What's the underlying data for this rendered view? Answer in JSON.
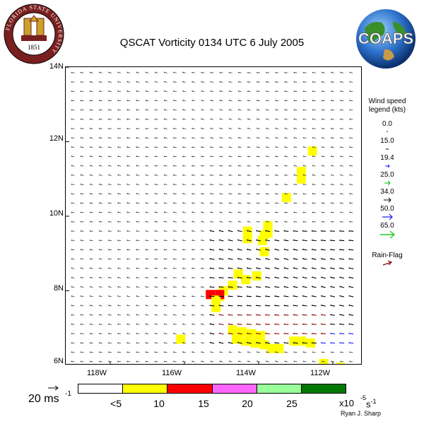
{
  "title": "QSCAT Vorticity 0134 UTC 6 July 2005",
  "logos": {
    "fsu_ring_text": "FLORIDA STATE UNIVERSITY",
    "fsu_year": "1851",
    "coaps_text": "COAPS"
  },
  "axes": {
    "y_ticks": [
      "14N",
      "12N",
      "10N",
      "8N",
      "6N"
    ],
    "x_ticks": [
      "118W",
      "116W",
      "114W",
      "112W"
    ],
    "lat_range": [
      6,
      14
    ],
    "lon_range": [
      -119.2,
      -111.2
    ]
  },
  "legend": {
    "title_line1": "Wind speed",
    "title_line2": "legend (kts)",
    "entries": [
      {
        "value": "0.0",
        "color": "#000000"
      },
      {
        "value": "15.0",
        "color": "#000000"
      },
      {
        "value": "19.4",
        "color": "#000000"
      },
      {
        "value": "25.0",
        "color": "#1a1aff"
      },
      {
        "value": "34.0",
        "color": "#22cc22"
      },
      {
        "value": "50.0",
        "color": "#000000"
      },
      {
        "value": "65.0",
        "color": "#1a1aff"
      },
      {
        "value": "",
        "color": "#22cc22"
      }
    ],
    "rain_flag_label": "Rain-Flag",
    "rain_flag_color": "#8b0000"
  },
  "colorbar": {
    "segments": [
      {
        "color": "#ffffff"
      },
      {
        "color": "#ffff00"
      },
      {
        "color": "#ff0000"
      },
      {
        "color": "#ff66ff"
      },
      {
        "color": "#99ff99"
      },
      {
        "color": "#007700"
      }
    ],
    "ticks": [
      "<5",
      "10",
      "15",
      "20",
      "25"
    ],
    "unit": "x10",
    "unit_exp": "-5",
    "unit_tail": " s",
    "unit_tail_exp": "-1"
  },
  "reference_vector": {
    "label": "20 ms",
    "exp": "-1"
  },
  "credit": "Ryan J. Sharp",
  "chart_data": {
    "type": "heatmap",
    "title": "QSCAT Vorticity 0134 UTC 6 July 2005",
    "xlabel": "",
    "ylabel": "",
    "x_range": [
      -119.2,
      -111.2
    ],
    "y_range": [
      6,
      14
    ],
    "vorticity_cells": [
      {
        "lon": -112.55,
        "lat": 11.75,
        "level": 1
      },
      {
        "lon": -112.85,
        "lat": 11.2,
        "level": 1
      },
      {
        "lon": -112.85,
        "lat": 11.0,
        "level": 1
      },
      {
        "lon": -113.25,
        "lat": 10.5,
        "level": 1
      },
      {
        "lon": -114.3,
        "lat": 9.4,
        "level": 1
      },
      {
        "lon": -114.3,
        "lat": 9.6,
        "level": 1
      },
      {
        "lon": -113.85,
        "lat": 9.5,
        "level": 1
      },
      {
        "lon": -113.9,
        "lat": 9.35,
        "level": 1
      },
      {
        "lon": -113.75,
        "lat": 9.75,
        "level": 1
      },
      {
        "lon": -113.75,
        "lat": 9.55,
        "level": 1
      },
      {
        "lon": -113.85,
        "lat": 9.05,
        "level": 1
      },
      {
        "lon": -114.55,
        "lat": 8.45,
        "level": 1
      },
      {
        "lon": -114.05,
        "lat": 8.4,
        "level": 1
      },
      {
        "lon": -114.35,
        "lat": 8.3,
        "level": 1
      },
      {
        "lon": -114.7,
        "lat": 8.15,
        "level": 1
      },
      {
        "lon": -114.95,
        "lat": 8.0,
        "level": 1
      },
      {
        "lon": -115.05,
        "lat": 7.85,
        "level": 1
      },
      {
        "lon": -115.3,
        "lat": 7.9,
        "level": 2
      },
      {
        "lon": -115.05,
        "lat": 7.9,
        "level": 2
      },
      {
        "lon": -115.15,
        "lat": 7.75,
        "level": 1
      },
      {
        "lon": -115.15,
        "lat": 7.55,
        "level": 1
      },
      {
        "lon": -114.7,
        "lat": 6.95,
        "level": 1
      },
      {
        "lon": -114.45,
        "lat": 6.9,
        "level": 1
      },
      {
        "lon": -114.2,
        "lat": 6.85,
        "level": 1
      },
      {
        "lon": -113.95,
        "lat": 6.8,
        "level": 1
      },
      {
        "lon": -114.6,
        "lat": 6.7,
        "level": 1
      },
      {
        "lon": -114.35,
        "lat": 6.65,
        "level": 1
      },
      {
        "lon": -114.1,
        "lat": 6.6,
        "level": 1
      },
      {
        "lon": -113.85,
        "lat": 6.55,
        "level": 1
      },
      {
        "lon": -113.65,
        "lat": 6.45,
        "level": 1
      },
      {
        "lon": -113.45,
        "lat": 6.45,
        "level": 1
      },
      {
        "lon": -113.05,
        "lat": 6.65,
        "level": 1
      },
      {
        "lon": -112.6,
        "lat": 6.6,
        "level": 1
      },
      {
        "lon": -112.85,
        "lat": 6.65,
        "level": 1
      },
      {
        "lon": -116.1,
        "lat": 6.7,
        "level": 1
      },
      {
        "lon": -112.25,
        "lat": 6.05,
        "level": 1
      },
      {
        "lon": -111.8,
        "lat": 5.95,
        "level": 1
      }
    ],
    "wind_field": {
      "lon_start": -119.0,
      "lon_end": -111.4,
      "lat_start": 6.1,
      "lat_end": 13.9,
      "step": 0.25,
      "dominant_direction": "from east-northeast",
      "swath_edge_west": "northwest diagonal",
      "rain_flagged_band": "6.8N-7.4N, 115W-112W"
    }
  }
}
